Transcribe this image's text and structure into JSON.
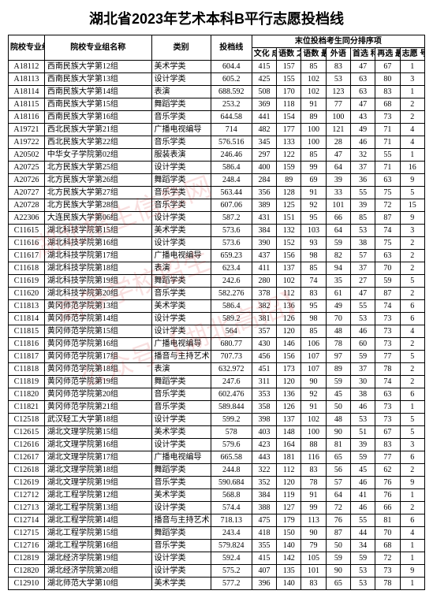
{
  "title": "湖北省2023年艺术本科B平行志愿投档线",
  "title_fontsize": 18,
  "headers": {
    "code": "院校专业组\n代号",
    "name": "院校专业组名称",
    "category": "类别",
    "line": "投档线",
    "tiebreak_group": "末位投档考生同分排序项",
    "s1": "文化\n成绩",
    "s2": "语数\n之和",
    "s3": "语数\n最高",
    "s4": "外语",
    "s5": "首选\n科目",
    "s6": "再选\n最高",
    "s7": "志愿\n号"
  },
  "columns_width": {
    "code": 44,
    "name": 130,
    "cat": 72,
    "line": 50,
    "s": 30
  },
  "rows": [
    [
      "A18112",
      "西南民族大学第12组",
      "美术学类",
      "604.4",
      "415",
      "157",
      "85",
      "83",
      "47",
      "67",
      "1"
    ],
    [
      "A18113",
      "西南民族大学第13组",
      "设计学类",
      "605.2",
      "425",
      "155",
      "102",
      "53",
      "63",
      "80",
      "3"
    ],
    [
      "A18114",
      "西南民族大学第14组",
      "表演",
      "688.592",
      "508",
      "170",
      "102",
      "123",
      "63",
      "83",
      "1"
    ],
    [
      "A18115",
      "西南民族大学第15组",
      "舞蹈学类",
      "253.2",
      "369",
      "118",
      "91",
      "77",
      "47",
      "68",
      "2"
    ],
    [
      "A18116",
      "西南民族大学第16组",
      "音乐学类",
      "644.58",
      "441",
      "154",
      "89",
      "100",
      "43",
      "73",
      "2"
    ],
    [
      "A19721",
      "西北民族大学第21组",
      "广播电视编导",
      "714",
      "482",
      "177",
      "100",
      "121",
      "49",
      "71",
      "4"
    ],
    [
      "A19722",
      "西北民族大学第22组",
      "音乐学类",
      "576.516",
      "345",
      "133",
      "100",
      "28",
      "46",
      "71",
      "4"
    ],
    [
      "A20502",
      "中华女子学院第02组",
      "服装表演",
      "246.46",
      "297",
      "122",
      "85",
      "47",
      "32",
      "55",
      "1"
    ],
    [
      "A20725",
      "北方民族大学第25组",
      "设计学类",
      "586.4",
      "400",
      "159",
      "99",
      "64",
      "37",
      "71",
      "16"
    ],
    [
      "A20726",
      "北方民族大学第26组",
      "舞蹈学类",
      "248.4",
      "284",
      "89",
      "69",
      "39",
      "36",
      "63",
      "9"
    ],
    [
      "A20727",
      "北方民族大学第27组",
      "音乐学类",
      "563.44",
      "356",
      "128",
      "91",
      "33",
      "55",
      "75",
      "5"
    ],
    [
      "A20728",
      "北方民族大学第28组",
      "音乐学类",
      "607.06",
      "389",
      "125",
      "92",
      "101",
      "39",
      "72",
      "15"
    ],
    [
      "A22306",
      "大连民族大学第06组",
      "设计学类",
      "587.2",
      "431",
      "151",
      "95",
      "66",
      "85",
      "87",
      "9"
    ],
    [
      "C11615",
      "湖北科技学院第15组",
      "美术学类",
      "573.6",
      "384",
      "132",
      "103",
      "64",
      "53",
      "74",
      "3"
    ],
    [
      "C11616",
      "湖北科技学院第16组",
      "设计学类",
      "573.6",
      "390",
      "152",
      "93",
      "59",
      "38",
      "75",
      "2"
    ],
    [
      "C11617",
      "湖北科技学院第17组",
      "广播电视编导",
      "659.23",
      "437",
      "156",
      "98",
      "82",
      "57",
      "63",
      "2"
    ],
    [
      "C11618",
      "湖北科技学院第18组",
      "表演",
      "623.4",
      "411",
      "137",
      "85",
      "94",
      "37",
      "70",
      "2"
    ],
    [
      "C11619",
      "湖北科技学院第19组",
      "舞蹈学类",
      "242.6",
      "280",
      "102",
      "74",
      "35",
      "27",
      "59",
      "5"
    ],
    [
      "C11620",
      "湖北科技学院第20组",
      "音乐学类",
      "582.276",
      "378",
      "112",
      "83",
      "61",
      "47",
      "87",
      "2"
    ],
    [
      "C11813",
      "黄冈师范学院第13组",
      "美术学类",
      "586.4",
      "382",
      "136",
      "95",
      "49",
      "55",
      "74",
      "6"
    ],
    [
      "C11814",
      "黄冈师范学院第14组",
      "设计学类",
      "589.2",
      "381",
      "126",
      "98",
      "70",
      "53",
      "73",
      "6"
    ],
    [
      "C11815",
      "黄冈师范学院第15组",
      "设计学类",
      "564",
      "357",
      "120",
      "85",
      "48",
      "46",
      "73",
      "4"
    ],
    [
      "C11816",
      "黄冈师范学院第16组",
      "广播电视编导",
      "680.77",
      "430",
      "146",
      "106",
      "78",
      "60",
      "73",
      "2"
    ],
    [
      "C11817",
      "黄冈师范学院第17组",
      "播音与主持艺术",
      "707.73",
      "456",
      "156",
      "107",
      "97",
      "59",
      "77",
      "5"
    ],
    [
      "C11818",
      "黄冈师范学院第18组",
      "表演",
      "632.972",
      "451",
      "173",
      "107",
      "89",
      "37",
      "78",
      "2"
    ],
    [
      "C11819",
      "黄冈师范学院第19组",
      "舞蹈学类",
      "247.6",
      "311",
      "120",
      "90",
      "59",
      "30",
      "74",
      "2"
    ],
    [
      "C11820",
      "黄冈师范学院第20组",
      "音乐学类",
      "602.476",
      "353",
      "136",
      "92",
      "45",
      "38",
      "63",
      "6"
    ],
    [
      "C11821",
      "黄冈师范学院第21组",
      "音乐学类",
      "589.844",
      "358",
      "126",
      "91",
      "50",
      "46",
      "73",
      "1"
    ],
    [
      "C12518",
      "武汉轻工大学第18组",
      "设计学类",
      "599.2",
      "398",
      "137",
      "102",
      "48",
      "53",
      "73",
      "5"
    ],
    [
      "C12615",
      "湖北文理学院第15组",
      "美术学类",
      "578",
      "403",
      "148",
      "100",
      "90",
      "51",
      "67",
      "5"
    ],
    [
      "C12616",
      "湖北文理学院第16组",
      "设计学类",
      "579.6",
      "423",
      "164",
      "88",
      "81",
      "39",
      "83",
      "3"
    ],
    [
      "C12617",
      "湖北文理学院第17组",
      "广播电视编导",
      "665.58",
      "443",
      "181",
      "116",
      "65",
      "59",
      "77",
      "6"
    ],
    [
      "C12618",
      "湖北文理学院第18组",
      "舞蹈学类",
      "244.8",
      "322",
      "112",
      "83",
      "56",
      "45",
      "62",
      "2"
    ],
    [
      "C12619",
      "湖北文理学院第19组",
      "音乐学类",
      "590.684",
      "352",
      "120",
      "78",
      "57",
      "46",
      "76",
      "9"
    ],
    [
      "C12712",
      "湖北工程学院第12组",
      "美术学类",
      "568.8",
      "384",
      "119",
      "91",
      "64",
      "41",
      "76",
      "1"
    ],
    [
      "C12713",
      "湖北工程学院第13组",
      "设计学类",
      "574.4",
      "388",
      "127",
      "99",
      "72",
      "46",
      "66",
      "2"
    ],
    [
      "C12714",
      "湖北工程学院第14组",
      "播音与主持艺术",
      "718.13",
      "475",
      "179",
      "113",
      "76",
      "55",
      "81",
      "6"
    ],
    [
      "C12715",
      "湖北工程学院第15组",
      "舞蹈学类",
      "243.4",
      "418",
      "150",
      "90",
      "87",
      "44",
      "70",
      "4"
    ],
    [
      "C12716",
      "湖北工程学院第16组",
      "音乐学类",
      "579.824",
      "355",
      "140",
      "79",
      "50",
      "34",
      "68",
      "1"
    ],
    [
      "C12819",
      "湖北经济学院第19组",
      "设计学类",
      "592.4",
      "415",
      "142",
      "105",
      "59",
      "59",
      "72",
      "1"
    ],
    [
      "C12820",
      "湖北经济学院第20组",
      "设计学类",
      "575.2",
      "407",
      "135",
      "101",
      "90",
      "53",
      "73",
      "9"
    ],
    [
      "C12910",
      "湖北师范大学第10组",
      "美术学类",
      "577.2",
      "396",
      "140",
      "83",
      "65",
      "53",
      "78",
      "1"
    ]
  ]
}
